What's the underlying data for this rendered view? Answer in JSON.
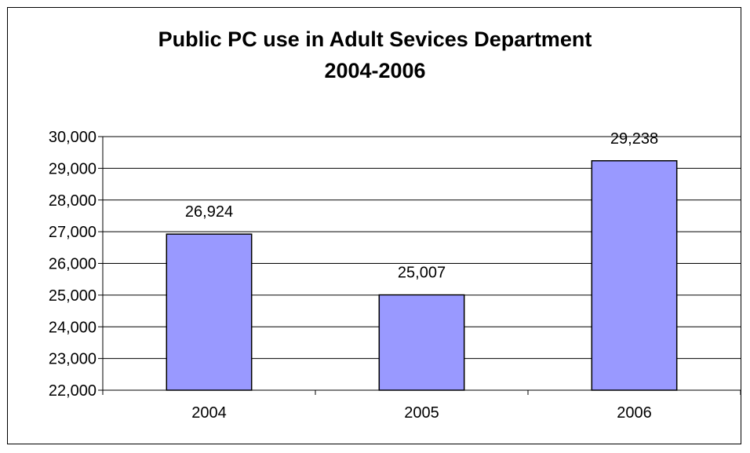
{
  "chart_data": {
    "type": "bar",
    "title_lines": [
      "Public PC use in Adult Sevices Department",
      "2004-2006"
    ],
    "categories": [
      "2004",
      "2005",
      "2006"
    ],
    "values": [
      26924,
      25007,
      29238
    ],
    "data_labels": [
      "26,924",
      "25,007",
      "29,238"
    ],
    "ylim": [
      22000,
      30000
    ],
    "yticks": [
      22000,
      23000,
      24000,
      25000,
      26000,
      27000,
      28000,
      29000,
      30000
    ],
    "ytick_labels": [
      "22,000",
      "23,000",
      "24,000",
      "25,000",
      "26,000",
      "27,000",
      "28,000",
      "29,000",
      "30,000"
    ],
    "grid": true,
    "legend": "none",
    "colors": {
      "bar_fill": "#9999FF",
      "bar_stroke": "#000000",
      "grid": "#000000",
      "axis": "#000000"
    }
  }
}
